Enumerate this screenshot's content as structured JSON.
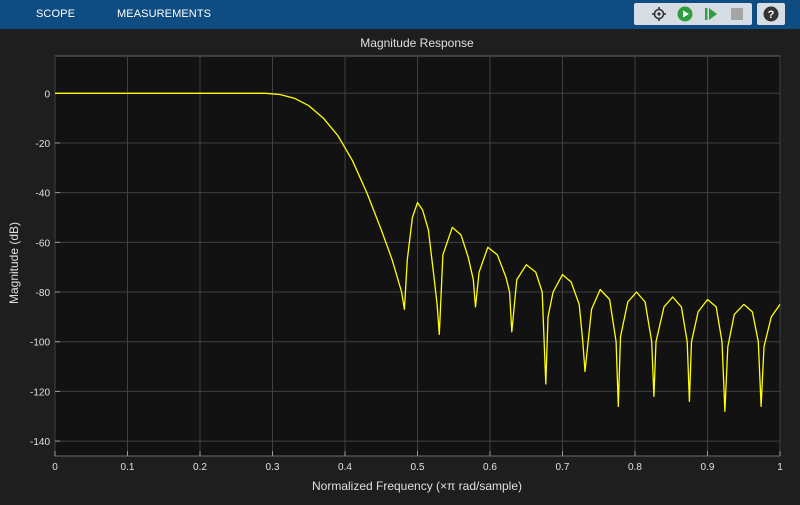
{
  "toolstrip": {
    "tabs": [
      {
        "label": "SCOPE"
      },
      {
        "label": "MEASUREMENTS"
      }
    ],
    "tools": [
      "cursor-settings-icon",
      "run-icon",
      "step-forward-icon",
      "stop-icon",
      "help-icon"
    ],
    "help_label": "?"
  },
  "colors": {
    "toolstrip": "#0f4c81",
    "background": "#1e1e1e",
    "plot_background": "#121212",
    "trace": "#ffff00",
    "grid": "#404040"
  },
  "chart_data": {
    "type": "line",
    "title": "Magnitude Response",
    "xlabel": "Normalized Frequency (×π rad/sample)",
    "ylabel": "Magnitude (dB)",
    "xlim": [
      0,
      1
    ],
    "ylim": [
      -146,
      15
    ],
    "x_ticks": [
      0,
      0.1,
      0.2,
      0.3,
      0.4,
      0.5,
      0.6,
      0.7,
      0.8,
      0.9,
      1
    ],
    "x_tick_labels": [
      "0",
      "0.1",
      "0.2",
      "0.3",
      "0.4",
      "0.5",
      "0.6",
      "0.7",
      "0.8",
      "0.9",
      "1"
    ],
    "y_ticks": [
      0,
      -20,
      -40,
      -60,
      -80,
      -100,
      -120,
      -140
    ],
    "y_tick_labels": [
      "0",
      "-20",
      "-40",
      "-60",
      "-80",
      "-100",
      "-120",
      "-140"
    ],
    "grid": true,
    "series": [
      {
        "x": [
          0,
          0.1,
          0.2,
          0.29,
          0.31,
          0.33,
          0.35,
          0.37,
          0.39,
          0.41,
          0.43,
          0.45,
          0.465,
          0.478,
          0.482,
          0.486,
          0.493,
          0.5,
          0.507,
          0.515,
          0.522,
          0.527,
          0.53,
          0.535,
          0.548,
          0.56,
          0.57,
          0.577,
          0.58,
          0.585,
          0.597,
          0.61,
          0.622,
          0.627,
          0.63,
          0.637,
          0.65,
          0.663,
          0.672,
          0.677,
          0.68,
          0.687,
          0.7,
          0.712,
          0.723,
          0.728,
          0.731,
          0.74,
          0.752,
          0.765,
          0.774,
          0.777,
          0.78,
          0.79,
          0.802,
          0.814,
          0.823,
          0.826,
          0.829,
          0.84,
          0.852,
          0.864,
          0.872,
          0.875,
          0.878,
          0.887,
          0.9,
          0.912,
          0.92,
          0.924,
          0.928,
          0.937,
          0.95,
          0.962,
          0.97,
          0.974,
          0.978,
          0.988,
          1
        ],
        "y": [
          0,
          0,
          0,
          0,
          -0.5,
          -2,
          -5,
          -10,
          -17,
          -27,
          -40,
          -55,
          -67,
          -80,
          -87,
          -67,
          -50,
          -44,
          -47,
          -55,
          -72,
          -85,
          -97,
          -65,
          -54,
          -57,
          -66,
          -75,
          -86,
          -72,
          -62,
          -65,
          -74,
          -80,
          -96,
          -75,
          -69,
          -72,
          -80,
          -117,
          -90,
          -80,
          -73,
          -76,
          -85,
          -100,
          -112,
          -87,
          -79,
          -83,
          -100,
          -126,
          -98,
          -84,
          -80,
          -84,
          -100,
          -122,
          -100,
          -86,
          -82,
          -86,
          -100,
          -124,
          -100,
          -88,
          -83,
          -86,
          -100,
          -128,
          -102,
          -89,
          -85,
          -88,
          -100,
          -126,
          -102,
          -90,
          -85
        ]
      }
    ]
  }
}
